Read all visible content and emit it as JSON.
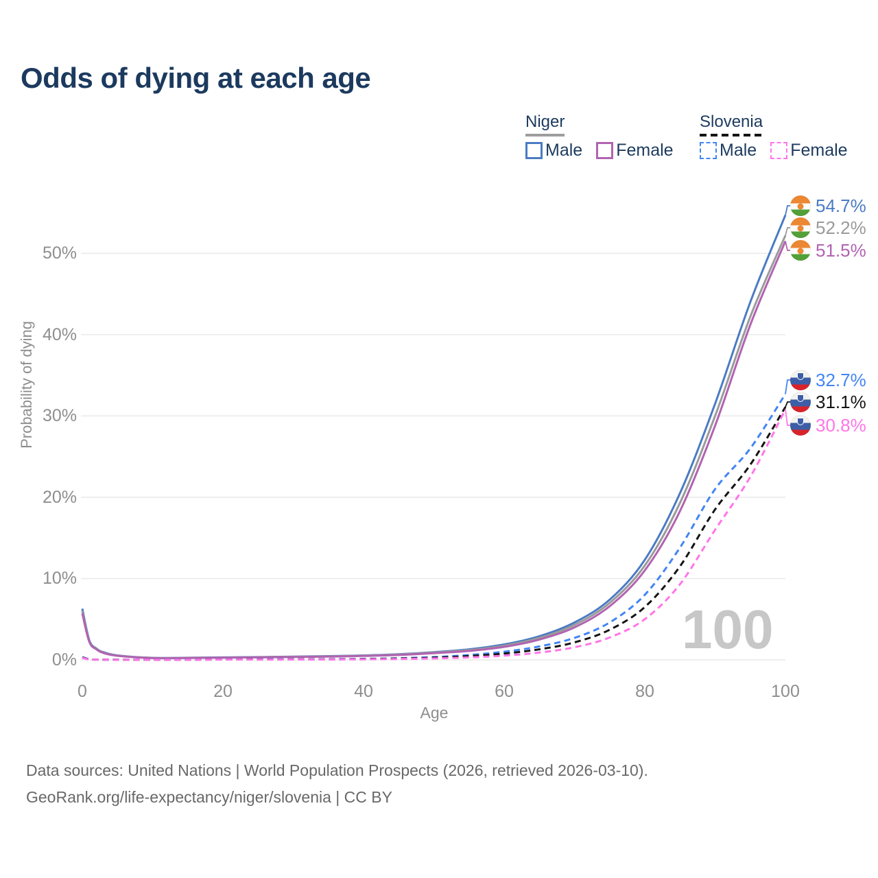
{
  "title": "Odds of dying at each age",
  "legend": {
    "groups": [
      {
        "name": "Niger",
        "line_style": "solid",
        "underline_color": "#9e9e9e",
        "items": [
          {
            "label": "Male",
            "color": "#4a7bc4",
            "dash": false
          },
          {
            "label": "Female",
            "color": "#b163b1",
            "dash": false
          }
        ]
      },
      {
        "name": "Slovenia",
        "line_style": "dashed",
        "underline_color": "#141414",
        "items": [
          {
            "label": "Male",
            "color": "#4285f4",
            "dash": true
          },
          {
            "label": "Female",
            "color": "#ff75e8",
            "dash": true
          }
        ]
      }
    ]
  },
  "chart_data": {
    "type": "line",
    "title": "Odds of dying at each age",
    "xlabel": "Age",
    "ylabel": "Probability of dying",
    "xlim": [
      0,
      100
    ],
    "ylim_percent": [
      0,
      57
    ],
    "grid": "horizontal",
    "legend_position": "top-right",
    "annotation_age": "100",
    "xticks": [
      "0",
      "20",
      "40",
      "60",
      "80",
      "100"
    ],
    "xtick_values": [
      0,
      20,
      40,
      60,
      80,
      100
    ],
    "ytick_labels": [
      "0%",
      "10%",
      "20%",
      "30%",
      "40%",
      "50%"
    ],
    "ytick_values": [
      0,
      10,
      20,
      30,
      40,
      50
    ],
    "ages": [
      0,
      1,
      2,
      3,
      5,
      10,
      15,
      20,
      25,
      30,
      35,
      40,
      45,
      50,
      55,
      60,
      65,
      70,
      75,
      80,
      85,
      90,
      95,
      100
    ],
    "series": [
      {
        "name": "Niger Male",
        "country": "Niger",
        "sex": "Male",
        "flag": "niger",
        "color": "#4a7bc4",
        "dash": false,
        "end_label": "54.7%",
        "values": [
          6.3,
          2.4,
          1.4,
          0.95,
          0.55,
          0.25,
          0.26,
          0.3,
          0.35,
          0.4,
          0.46,
          0.55,
          0.7,
          0.95,
          1.3,
          1.9,
          2.9,
          4.6,
          7.4,
          12.3,
          20.5,
          31.5,
          44.0,
          54.7
        ]
      },
      {
        "name": "Niger Both sexes",
        "country": "Niger",
        "sex": "Both",
        "flag": "niger",
        "color": "#9a9a9a",
        "dash": false,
        "end_label": "52.2%",
        "values": [
          6.0,
          2.3,
          1.35,
          0.9,
          0.52,
          0.24,
          0.25,
          0.28,
          0.33,
          0.38,
          0.43,
          0.52,
          0.66,
          0.9,
          1.2,
          1.75,
          2.7,
          4.3,
          7.0,
          11.6,
          19.3,
          30.0,
          42.2,
          52.2
        ]
      },
      {
        "name": "Niger Female",
        "country": "Niger",
        "sex": "Female",
        "flag": "niger",
        "color": "#b163b1",
        "dash": false,
        "end_label": "51.5%",
        "values": [
          5.7,
          2.2,
          1.3,
          0.85,
          0.5,
          0.22,
          0.23,
          0.26,
          0.3,
          0.35,
          0.4,
          0.48,
          0.6,
          0.82,
          1.1,
          1.6,
          2.5,
          4.0,
          6.6,
          11.0,
          18.3,
          28.8,
          41.2,
          51.5
        ]
      },
      {
        "name": "Slovenia Male",
        "country": "Slovenia",
        "sex": "Male",
        "flag": "slovenia",
        "color": "#4285f4",
        "dash": true,
        "end_label": "32.7%",
        "values": [
          0.35,
          0.08,
          0.04,
          0.03,
          0.02,
          0.01,
          0.03,
          0.05,
          0.06,
          0.07,
          0.09,
          0.13,
          0.2,
          0.35,
          0.6,
          1.0,
          1.65,
          2.7,
          4.6,
          8.0,
          13.8,
          21.0,
          26.0,
          32.7
        ]
      },
      {
        "name": "Slovenia Both sexes",
        "country": "Slovenia",
        "sex": "Both",
        "flag": "slovenia",
        "color": "#141414",
        "dash": true,
        "end_label": "31.1%",
        "values": [
          0.3,
          0.06,
          0.03,
          0.02,
          0.02,
          0.01,
          0.02,
          0.04,
          0.05,
          0.06,
          0.07,
          0.1,
          0.16,
          0.27,
          0.46,
          0.78,
          1.3,
          2.15,
          3.7,
          6.5,
          11.5,
          18.5,
          24.0,
          31.1
        ]
      },
      {
        "name": "Slovenia Female",
        "country": "Slovenia",
        "sex": "Female",
        "flag": "slovenia",
        "color": "#ff75e8",
        "dash": true,
        "end_label": "30.8%",
        "values": [
          0.25,
          0.05,
          0.03,
          0.02,
          0.01,
          0.01,
          0.015,
          0.03,
          0.035,
          0.04,
          0.05,
          0.07,
          0.11,
          0.18,
          0.3,
          0.52,
          0.9,
          1.55,
          2.75,
          5.0,
          9.3,
          16.0,
          22.5,
          30.8
        ]
      }
    ]
  },
  "footer": {
    "line1": "Data sources: United Nations | World Population Prospects (2026, retrieved 2026-03-10).",
    "line2": "GeoRank.org/life-expectancy/niger/slovenia | CC BY"
  }
}
